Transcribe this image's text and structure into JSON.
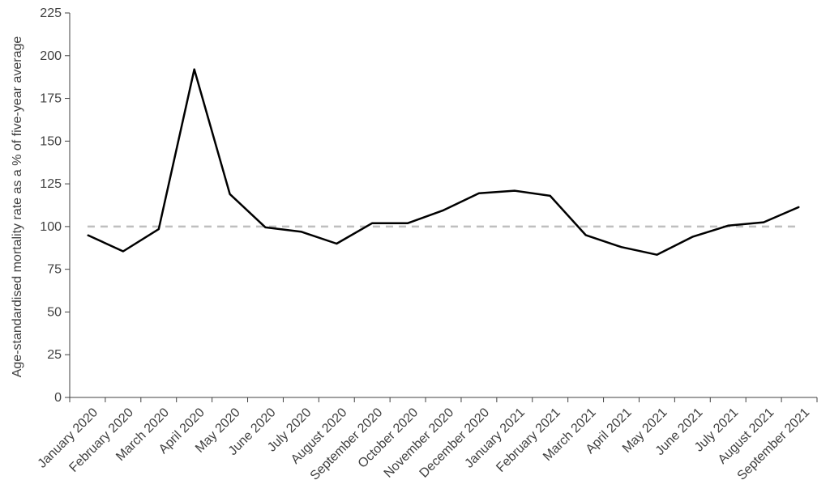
{
  "chart_data": {
    "type": "line",
    "title": "",
    "xlabel": "",
    "ylabel": "Age-standardised mortality rate as a % of five-year average",
    "ylim": [
      0,
      225
    ],
    "yticks": [
      0,
      25,
      50,
      75,
      100,
      125,
      150,
      175,
      200,
      225
    ],
    "grid": false,
    "legend": "none",
    "categories": [
      "January 2020",
      "February 2020",
      "March 2020",
      "April 2020",
      "May 2020",
      "June 2020",
      "July 2020",
      "August 2020",
      "September 2020",
      "October 2020",
      "November 2020",
      "December 2020",
      "January 2021",
      "February 2021",
      "March 2021",
      "April 2021",
      "May 2021",
      "June 2021",
      "July 2021",
      "August 2021",
      "September 2021"
    ],
    "series": [
      {
        "values": [
          95,
          85.5,
          98.5,
          192,
          119,
          99.5,
          97,
          90,
          102,
          102,
          109.5,
          119.5,
          121,
          118,
          95,
          88,
          83.5,
          94,
          100.5,
          102.5,
          111.5
        ],
        "color": "#000000",
        "style": "solid"
      }
    ],
    "reference_line": {
      "y": 100,
      "color": "#bfbfbf",
      "style": "dashed"
    },
    "axis_color": "#404040"
  }
}
